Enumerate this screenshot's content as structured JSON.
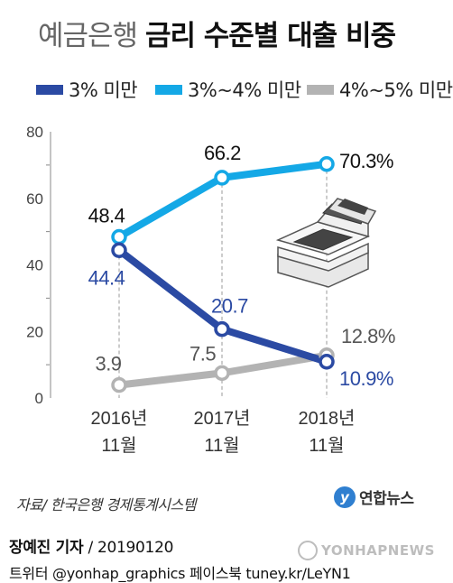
{
  "title": {
    "light": "예금은행",
    "bold": "금리 수준별 대출 비중"
  },
  "legend": [
    {
      "label": "3% 미만",
      "color": "#2b4aa3"
    },
    {
      "label": "3%~4% 미만",
      "color": "#14a8e6"
    },
    {
      "label": "4%~5% 미만",
      "color": "#b3b3b3"
    }
  ],
  "chart_data": {
    "type": "line",
    "categories": [
      [
        "2016년",
        "11월"
      ],
      [
        "2017년",
        "11월"
      ],
      [
        "2018년",
        "11월"
      ]
    ],
    "ylim": [
      0,
      80
    ],
    "yticks": [
      0,
      20,
      40,
      60,
      80
    ],
    "grid": false,
    "legend_position": "top",
    "series": [
      {
        "name": "3% 미만",
        "values": [
          44.4,
          20.7,
          10.9
        ],
        "labels": [
          "44.4",
          "20.7",
          "10.9%"
        ],
        "color": "#2b4aa3",
        "label_color": "#2b4aa3"
      },
      {
        "name": "3%~4% 미만",
        "values": [
          48.4,
          66.2,
          70.3
        ],
        "labels": [
          "48.4",
          "66.2",
          "70.3%"
        ],
        "color": "#14a8e6",
        "label_color": "#111111"
      },
      {
        "name": "4%~5% 미만",
        "values": [
          3.9,
          7.5,
          12.8
        ],
        "labels": [
          "3.9",
          "7.5",
          "12.8%"
        ],
        "color": "#b3b3b3",
        "label_color": "#555555"
      }
    ]
  },
  "source": "자료/ 한국은행 경제통계시스템",
  "brand": {
    "logo": "y",
    "text": "연합뉴스",
    "icon": "yonhap-logo-icon"
  },
  "reporter": {
    "name": "장예진 기자",
    "date": "/ 20190120"
  },
  "social": "트위터 @yonhap_graphics  페이스북 tuney.kr/LeYN1",
  "watermark": {
    "text": "YONHAPNEWS",
    "icon": "watermark-logo-icon"
  }
}
